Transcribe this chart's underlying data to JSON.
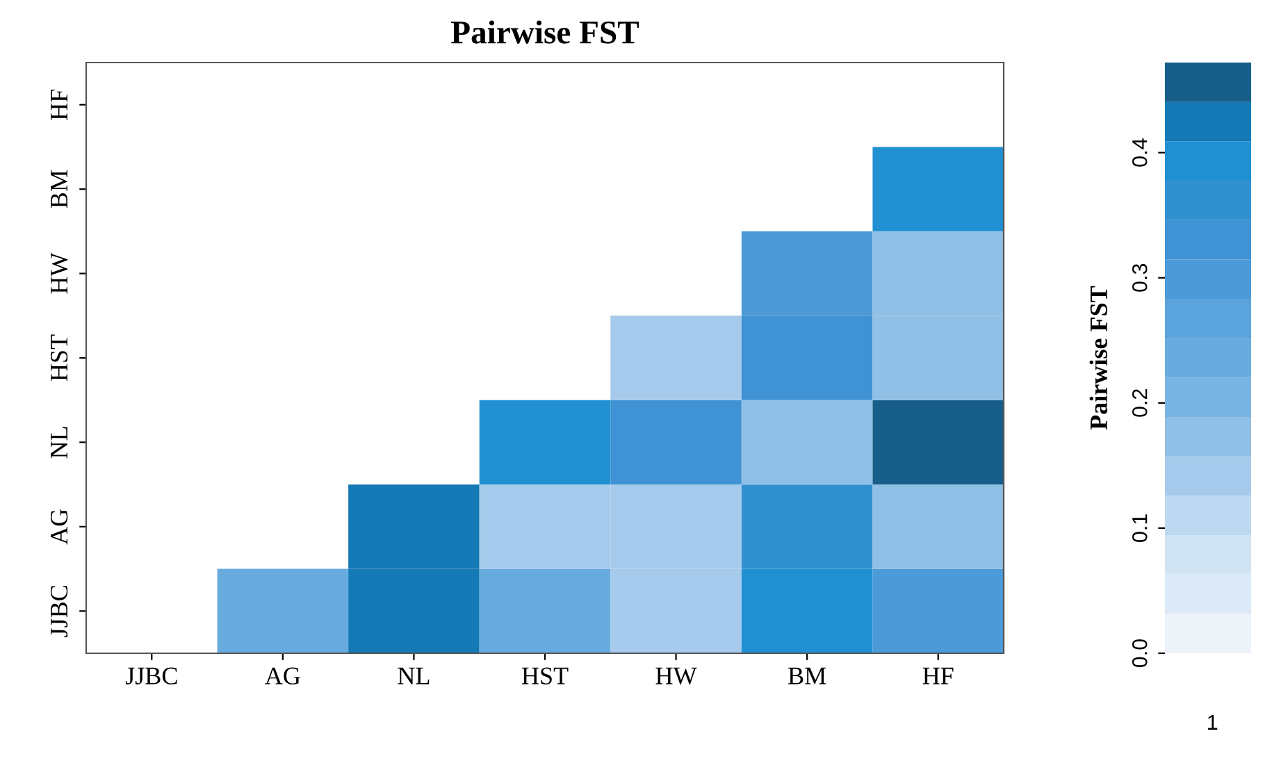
{
  "chart_data": {
    "type": "heatmap",
    "title": "Pairwise FST",
    "clabel": "Pairwise FST",
    "categories": [
      "JJBC",
      "AG",
      "NL",
      "HST",
      "HW",
      "BM",
      "HF"
    ],
    "y_categories": [
      "HF",
      "BM",
      "HW",
      "HST",
      "NL",
      "AG",
      "JJBC"
    ],
    "cells": [
      [
        null,
        null,
        null,
        null,
        null,
        null,
        null
      ],
      [
        null,
        null,
        null,
        null,
        null,
        null,
        0.39
      ],
      [
        null,
        null,
        null,
        null,
        null,
        0.3,
        0.17
      ],
      [
        null,
        null,
        null,
        null,
        0.14,
        0.33,
        0.17
      ],
      [
        null,
        null,
        null,
        0.39,
        0.33,
        0.17,
        0.46
      ],
      [
        null,
        null,
        0.42,
        0.14,
        0.14,
        0.36,
        0.17
      ],
      [
        null,
        0.24,
        0.42,
        0.24,
        0.14,
        0.39,
        0.3
      ]
    ],
    "clim": [
      0,
      0.472
    ],
    "cticks": [
      {
        "value": 0,
        "label": "0.0"
      },
      0.1,
      0.2,
      0.3,
      0.4
    ],
    "colors": [
      "#eef3fa",
      "#dce9f6",
      "#d0e4f4",
      "#bcd8f0",
      "#a5caeb",
      "#90c0e6",
      "#7ab4e2",
      "#68acdf",
      "#5aa3dc",
      "#4c9ad8",
      "#3f92d3",
      "#3090d0",
      "#2090d2",
      "#1479b5",
      "#175f8a"
    ],
    "annotations": [
      "1"
    ]
  }
}
